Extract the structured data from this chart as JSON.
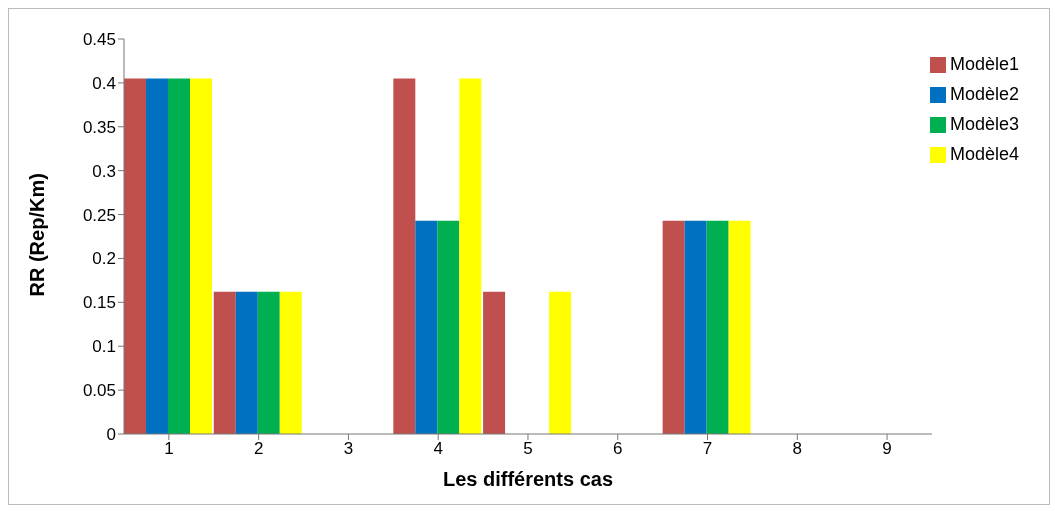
{
  "chart_data": {
    "type": "bar",
    "xlabel": "Les différents cas",
    "ylabel": "RR (Rep/Km)",
    "categories": [
      "1",
      "2",
      "3",
      "4",
      "5",
      "6",
      "7",
      "8",
      "9"
    ],
    "series": [
      {
        "name": "Modèle1",
        "color": "#c0504d",
        "values": [
          0.405,
          0.162,
          0,
          0.405,
          0.162,
          0,
          0.243,
          0,
          0
        ]
      },
      {
        "name": "Modèle2",
        "color": "#0070c0",
        "values": [
          0.405,
          0.162,
          0,
          0.243,
          0,
          0,
          0.243,
          0,
          0
        ]
      },
      {
        "name": "Modèle3",
        "color": "#00b050",
        "values": [
          0.405,
          0.162,
          0,
          0.243,
          0,
          0,
          0.243,
          0,
          0
        ]
      },
      {
        "name": "Modèle4",
        "color": "#ffff00",
        "values": [
          0.405,
          0.162,
          0,
          0.405,
          0.162,
          0,
          0.243,
          0,
          0
        ]
      }
    ],
    "ylim": [
      0,
      0.45
    ],
    "yticks": [
      0,
      0.05,
      0.1,
      0.15,
      0.2,
      0.25,
      0.3,
      0.35,
      0.4,
      0.45
    ],
    "grid": false,
    "legend": "top right"
  }
}
